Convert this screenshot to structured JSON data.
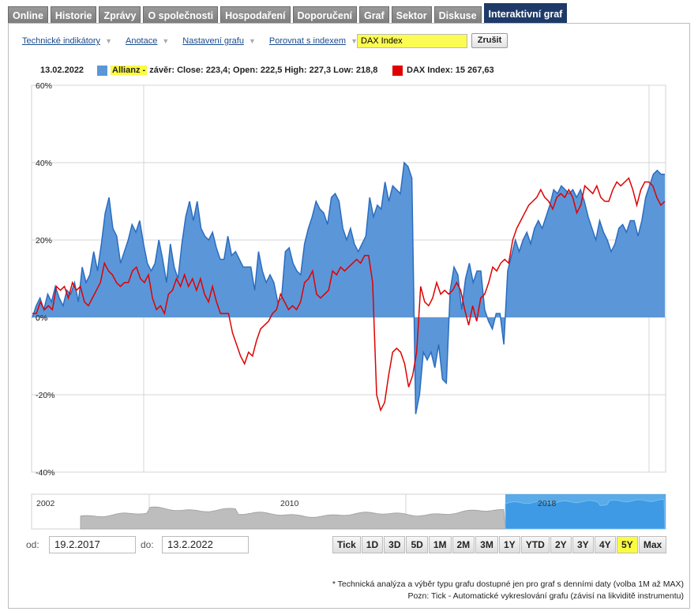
{
  "tabs": [
    {
      "label": "Online",
      "active": false
    },
    {
      "label": "Historie",
      "active": false
    },
    {
      "label": "Zprávy",
      "active": false
    },
    {
      "label": "O společnosti",
      "active": false
    },
    {
      "label": "Hospodaření",
      "active": false
    },
    {
      "label": "Doporučení",
      "active": false
    },
    {
      "label": "Graf",
      "active": false
    },
    {
      "label": "Sektor",
      "active": false
    },
    {
      "label": "Diskuse",
      "active": false
    },
    {
      "label": "Interaktivní graf",
      "active": true
    }
  ],
  "toolbar": {
    "indicators": "Technické indikátory",
    "annotations": "Anotace",
    "chart_settings": "Nastavení grafu",
    "compare": "Porovnat s indexem",
    "compare_value": "DAX Index",
    "cancel": "Zrušit"
  },
  "legend": {
    "date": "13.02.2022",
    "series1_name": "Allianz -",
    "series1_text": "závěr: Close: 223,4; Open: 222,5 High: 227,3 Low: 218,8",
    "series1_color": "#5b97d8",
    "series2_text": "DAX Index: 15 267,63",
    "series2_color": "#e00000"
  },
  "chart_data": {
    "type": "area",
    "ylim": [
      -40,
      60
    ],
    "yticks": [
      "60%",
      "40%",
      "20%",
      "0%",
      "-20%",
      "-40%"
    ],
    "ytick_values": [
      60,
      40,
      20,
      0,
      -20,
      -40
    ],
    "x_range": [
      "19.2.2017",
      "13.2.2022"
    ],
    "series": [
      {
        "name": "Allianz",
        "color": "#5b97d8",
        "values": [
          0,
          3,
          5,
          2,
          6,
          4,
          8,
          5,
          3,
          7,
          6,
          9,
          4,
          13,
          9,
          11,
          17,
          12,
          19,
          27,
          31,
          23,
          21,
          14,
          17,
          20,
          24,
          22,
          25,
          19,
          14,
          12,
          14,
          20,
          15,
          9,
          19,
          13,
          10,
          19,
          26,
          30,
          25,
          30,
          23,
          21,
          20,
          22,
          18,
          15,
          15,
          21,
          16,
          17,
          15,
          13,
          13,
          13,
          7,
          17,
          12,
          9,
          11,
          9,
          4,
          5,
          17,
          18,
          14,
          12,
          11,
          19,
          23,
          26,
          30,
          28,
          27,
          24,
          31,
          32,
          30,
          23,
          20,
          23,
          19,
          17,
          19,
          21,
          31,
          26,
          29,
          28,
          35,
          30,
          34,
          33,
          32,
          40,
          39,
          36,
          -25,
          -20,
          -9,
          -11,
          -9,
          -13,
          -7,
          -16,
          -17,
          7,
          13,
          11,
          2,
          10,
          14,
          9,
          12,
          12,
          2,
          -1,
          -3,
          1,
          1,
          -7,
          12,
          16,
          20,
          17,
          20,
          22,
          19,
          23,
          25,
          23,
          26,
          29,
          33,
          32,
          34,
          33,
          32,
          33,
          31,
          33,
          30,
          26,
          23,
          20,
          25,
          22,
          20,
          17,
          19,
          23,
          24,
          22,
          25,
          25,
          21,
          25,
          31,
          34,
          37,
          38,
          37,
          37
        ]
      },
      {
        "name": "DAX Index",
        "color": "#e00000",
        "values": [
          1,
          1,
          4,
          2,
          3,
          2,
          8,
          7,
          8,
          5,
          9,
          7,
          8,
          4,
          3,
          5,
          7,
          9,
          14,
          12,
          11,
          9,
          8,
          9,
          9,
          12,
          13,
          10,
          9,
          11,
          5,
          2,
          3,
          1,
          6,
          7,
          10,
          8,
          11,
          8,
          10,
          7,
          10,
          6,
          4,
          8,
          4,
          1,
          1,
          1,
          -4,
          -7,
          -10,
          -12,
          -9,
          -10,
          -6,
          -3,
          -2,
          -1,
          1,
          2,
          6,
          4,
          2,
          3,
          2,
          4,
          9,
          10,
          12,
          6,
          5,
          6,
          7,
          12,
          11,
          13,
          12,
          13,
          14,
          15,
          14,
          16,
          16,
          9,
          -20,
          -24,
          -22,
          -15,
          -9,
          -8,
          -9,
          -12,
          -18,
          -15,
          -9,
          8,
          4,
          3,
          5,
          9,
          6,
          7,
          6,
          7,
          9,
          7,
          2,
          -2,
          3,
          -1,
          5,
          6,
          9,
          13,
          12,
          14,
          15,
          14,
          20,
          23,
          25,
          27,
          29,
          30,
          31,
          33,
          31,
          30,
          28,
          31,
          32,
          31,
          33,
          31,
          27,
          29,
          34,
          33,
          32,
          34,
          31,
          30,
          30,
          33,
          35,
          34,
          35,
          36,
          33,
          29,
          33,
          35,
          35,
          34,
          31,
          29,
          30
        ]
      }
    ]
  },
  "navigator": {
    "year_labels": [
      "2002",
      "2010",
      "2018"
    ]
  },
  "range": {
    "from_label": "od:",
    "from_value": "19.2.2017",
    "to_label": "do:",
    "to_value": "13.2.2022",
    "buttons": [
      "Tick",
      "1D",
      "3D",
      "5D",
      "1M",
      "2M",
      "3M",
      "1Y",
      "YTD",
      "2Y",
      "3Y",
      "4Y",
      "5Y",
      "Max"
    ],
    "selected": "5Y"
  },
  "notes": {
    "line1": "* Technická analýza a výběr typu grafu dostupné jen pro graf s denními daty (volba 1M až MAX)",
    "line2": "Pozn: Tick - Automatické vykreslování grafu (závisí na likviditě instrumentu)"
  }
}
